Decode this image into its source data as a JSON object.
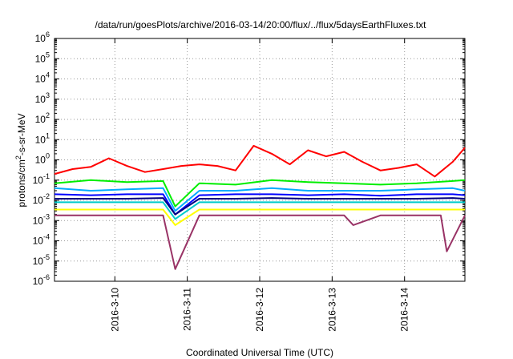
{
  "chart_data": {
    "type": "line",
    "title": "/data/run/goesPlots/archive/2016-03-14/20:00/flux/../flux/5daysEarthFluxes.txt",
    "xlabel": "Coordinated Universal Time (UTC)",
    "ylabel": "protons/cm²-s-sr-MeV",
    "ylabel_parts": {
      "pre": "protons/cm",
      "sup": "2",
      "post": "-s-sr-MeV"
    },
    "yscale": "log",
    "ylim": [
      "1e-6",
      "1e6"
    ],
    "xlim": [
      "2016-03-09 04:00",
      "2016-03-14 20:00"
    ],
    "xticks": [
      {
        "label": "2016-3-10",
        "t": "2016-03-10 00:00"
      },
      {
        "label": "2016-3-11",
        "t": "2016-03-11 00:00"
      },
      {
        "label": "2016-3-12",
        "t": "2016-03-12 00:00"
      },
      {
        "label": "2016-3-13",
        "t": "2016-03-13 00:00"
      },
      {
        "label": "2016-3-14",
        "t": "2016-03-14 00:00"
      }
    ],
    "yticks": [
      {
        "base": "10",
        "exp": "-6",
        "v": "1e-6"
      },
      {
        "base": "10",
        "exp": "-5",
        "v": "1e-5"
      },
      {
        "base": "10",
        "exp": "-4",
        "v": "1e-4"
      },
      {
        "base": "10",
        "exp": "-3",
        "v": "1e-3"
      },
      {
        "base": "10",
        "exp": "-2",
        "v": "1e-2"
      },
      {
        "base": "10",
        "exp": "-1",
        "v": "1e-1"
      },
      {
        "base": "10",
        "exp": "0",
        "v": "1"
      },
      {
        "base": "10",
        "exp": "1",
        "v": "1e1"
      },
      {
        "base": "10",
        "exp": "2",
        "v": "1e2"
      },
      {
        "base": "10",
        "exp": "3",
        "v": "1e3"
      },
      {
        "base": "10",
        "exp": "4",
        "v": "1e4"
      },
      {
        "base": "10",
        "exp": "5",
        "v": "1e5"
      },
      {
        "base": "10",
        "exp": "6",
        "v": "1e6"
      }
    ],
    "grid": true,
    "legend": "none",
    "series": [
      {
        "color": "#ff0000",
        "x": [
          "2016-03-09 04:00",
          "2016-03-09 10:00",
          "2016-03-09 16:00",
          "2016-03-09 22:00",
          "2016-03-10 04:00",
          "2016-03-10 10:00",
          "2016-03-10 16:00",
          "2016-03-10 22:00",
          "2016-03-11 04:00",
          "2016-03-11 10:00",
          "2016-03-11 16:00",
          "2016-03-11 22:00",
          "2016-03-12 04:00",
          "2016-03-12 10:00",
          "2016-03-12 16:00",
          "2016-03-12 22:00",
          "2016-03-13 04:00",
          "2016-03-13 10:00",
          "2016-03-13 16:00",
          "2016-03-13 22:00",
          "2016-03-14 04:00",
          "2016-03-14 10:00",
          "2016-03-14 16:00",
          "2016-03-14 20:00"
        ],
        "y": [
          0.2,
          0.35,
          0.45,
          1.2,
          0.5,
          0.25,
          0.35,
          0.5,
          0.6,
          0.5,
          0.3,
          5.0,
          2.0,
          0.6,
          3.0,
          1.5,
          2.5,
          0.8,
          0.3,
          0.4,
          0.6,
          0.15,
          0.8,
          4.0
        ]
      },
      {
        "color": "#00ee00",
        "x": [
          "2016-03-09 04:00",
          "2016-03-09 16:00",
          "2016-03-10 04:00",
          "2016-03-10 16:00",
          "2016-03-10 20:00",
          "2016-03-11 04:00",
          "2016-03-11 16:00",
          "2016-03-12 04:00",
          "2016-03-12 16:00",
          "2016-03-13 04:00",
          "2016-03-13 16:00",
          "2016-03-14 04:00",
          "2016-03-14 16:00",
          "2016-03-14 20:00"
        ],
        "y": [
          0.07,
          0.1,
          0.08,
          0.09,
          0.005,
          0.07,
          0.06,
          0.1,
          0.08,
          0.07,
          0.06,
          0.07,
          0.09,
          0.1
        ]
      },
      {
        "color": "#00aaff",
        "x": [
          "2016-03-09 04:00",
          "2016-03-09 16:00",
          "2016-03-10 04:00",
          "2016-03-10 16:00",
          "2016-03-10 20:00",
          "2016-03-11 04:00",
          "2016-03-11 16:00",
          "2016-03-12 04:00",
          "2016-03-12 16:00",
          "2016-03-13 04:00",
          "2016-03-13 16:00",
          "2016-03-14 04:00",
          "2016-03-14 16:00",
          "2016-03-14 20:00"
        ],
        "y": [
          0.04,
          0.03,
          0.035,
          0.04,
          0.003,
          0.03,
          0.03,
          0.04,
          0.03,
          0.03,
          0.03,
          0.035,
          0.04,
          0.03
        ]
      },
      {
        "color": "#0000ff",
        "x": [
          "2016-03-09 04:00",
          "2016-03-09 16:00",
          "2016-03-10 04:00",
          "2016-03-10 16:00",
          "2016-03-10 20:00",
          "2016-03-11 04:00",
          "2016-03-11 16:00",
          "2016-03-12 04:00",
          "2016-03-12 16:00",
          "2016-03-13 04:00",
          "2016-03-13 16:00",
          "2016-03-14 04:00",
          "2016-03-14 16:00",
          "2016-03-14 20:00"
        ],
        "y": [
          0.02,
          0.018,
          0.02,
          0.02,
          0.002,
          0.018,
          0.02,
          0.02,
          0.018,
          0.02,
          0.017,
          0.02,
          0.02,
          0.018
        ]
      },
      {
        "color": "#000080",
        "x": [
          "2016-03-09 04:00",
          "2016-03-09 16:00",
          "2016-03-10 04:00",
          "2016-03-10 16:00",
          "2016-03-10 20:00",
          "2016-03-11 04:00",
          "2016-03-11 16:00",
          "2016-03-12 04:00",
          "2016-03-12 16:00",
          "2016-03-13 04:00",
          "2016-03-13 16:00",
          "2016-03-14 04:00",
          "2016-03-14 16:00",
          "2016-03-14 20:00"
        ],
        "y": [
          0.012,
          0.012,
          0.012,
          0.013,
          0.002,
          0.012,
          0.012,
          0.013,
          0.012,
          0.012,
          0.012,
          0.012,
          0.013,
          0.012
        ]
      },
      {
        "color": "#00cccc",
        "x": [
          "2016-03-09 04:00",
          "2016-03-09 16:00",
          "2016-03-10 04:00",
          "2016-03-10 16:00",
          "2016-03-10 20:00",
          "2016-03-11 04:00",
          "2016-03-11 16:00",
          "2016-03-12 04:00",
          "2016-03-12 16:00",
          "2016-03-13 04:00",
          "2016-03-13 16:00",
          "2016-03-14 04:00",
          "2016-03-14 16:00",
          "2016-03-14 20:00"
        ],
        "y": [
          0.008,
          0.008,
          0.008,
          0.008,
          0.0012,
          0.008,
          0.008,
          0.008,
          0.008,
          0.008,
          0.008,
          0.008,
          0.008,
          0.008
        ]
      },
      {
        "color": "#ffff00",
        "x": [
          "2016-03-09 04:00",
          "2016-03-10 04:00",
          "2016-03-10 16:00",
          "2016-03-10 20:00",
          "2016-03-11 04:00",
          "2016-03-12 04:00",
          "2016-03-13 04:00",
          "2016-03-14 04:00",
          "2016-03-14 20:00"
        ],
        "y": [
          0.0035,
          0.0035,
          0.0035,
          0.0006,
          0.0035,
          0.0035,
          0.0035,
          0.0035,
          0.0035
        ]
      },
      {
        "color": "#993366",
        "x": [
          "2016-03-09 04:00",
          "2016-03-09 16:00",
          "2016-03-10 04:00",
          "2016-03-10 16:00",
          "2016-03-10 20:00",
          "2016-03-11 04:00",
          "2016-03-11 16:00",
          "2016-03-12 04:00",
          "2016-03-12 16:00",
          "2016-03-13 04:00",
          "2016-03-13 07:00",
          "2016-03-13 16:00",
          "2016-03-14 04:00",
          "2016-03-14 12:00",
          "2016-03-14 14:00",
          "2016-03-14 20:00"
        ],
        "y": [
          0.0018,
          0.0018,
          0.0018,
          0.0018,
          4e-06,
          0.0018,
          0.0018,
          0.0018,
          0.0018,
          0.0018,
          0.0006,
          0.0018,
          0.0018,
          0.0018,
          3e-05,
          0.0018
        ]
      }
    ]
  }
}
